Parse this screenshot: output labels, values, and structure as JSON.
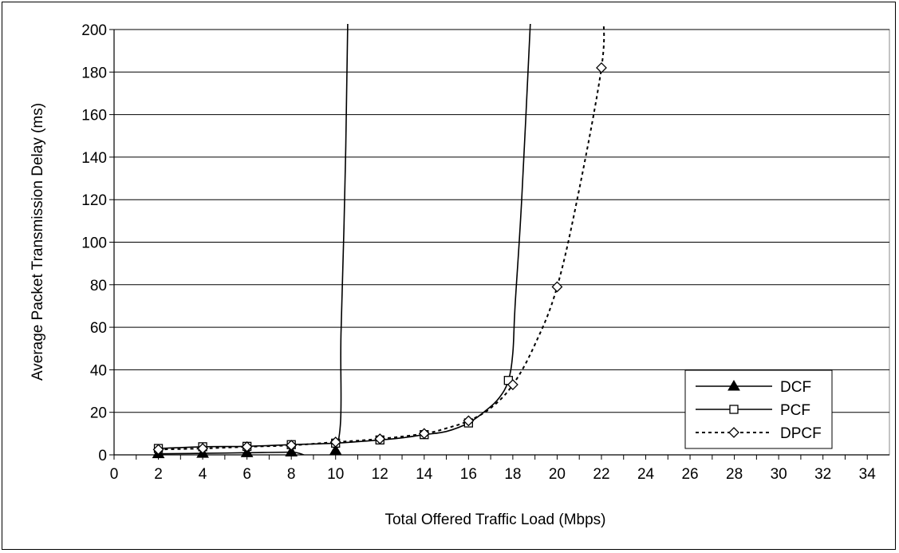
{
  "chart_data": {
    "type": "line",
    "title": "",
    "xlabel": "Total Offered Traffic Load (Mbps)",
    "ylabel": "Average Packet Transmission Delay (ms)",
    "xlim": [
      0,
      35
    ],
    "ylim": [
      0,
      200
    ],
    "x_ticks": [
      0,
      2,
      4,
      6,
      8,
      10,
      12,
      14,
      16,
      18,
      20,
      22,
      24,
      26,
      28,
      30,
      32,
      34
    ],
    "y_ticks": [
      0,
      20,
      40,
      60,
      80,
      100,
      120,
      140,
      160,
      180,
      200
    ],
    "grid": "horizontal",
    "legend_position": "bottom-right",
    "series": [
      {
        "name": "DCF",
        "marker": "filled-triangle",
        "line_style": "solid",
        "color": "#000000",
        "markers": [
          [
            2,
            0.5
          ],
          [
            4,
            0.7
          ],
          [
            6,
            1.0
          ],
          [
            8,
            1.3
          ],
          [
            10,
            2.0
          ]
        ],
        "curve": [
          [
            2,
            0.5
          ],
          [
            4,
            0.7
          ],
          [
            6,
            1.0
          ],
          [
            8,
            1.3
          ],
          [
            10,
            2.0
          ],
          [
            10.25,
            60
          ],
          [
            10.45,
            140
          ],
          [
            10.55,
            205
          ]
        ]
      },
      {
        "name": "PCF",
        "marker": "open-square",
        "line_style": "solid",
        "color": "#000000",
        "markers": [
          [
            2,
            3.0
          ],
          [
            4,
            3.8
          ],
          [
            6,
            4.0
          ],
          [
            8,
            4.8
          ],
          [
            10,
            5.5
          ],
          [
            12,
            7.0
          ],
          [
            14,
            9.5
          ],
          [
            16,
            15.0
          ],
          [
            17.8,
            35.0
          ]
        ],
        "curve": [
          [
            2,
            3.0
          ],
          [
            4,
            3.8
          ],
          [
            6,
            4.0
          ],
          [
            8,
            4.8
          ],
          [
            10,
            5.5
          ],
          [
            12,
            7.0
          ],
          [
            13,
            8.0
          ],
          [
            14,
            9.5
          ],
          [
            15,
            11.0
          ],
          [
            16,
            15.0
          ],
          [
            16.8,
            21.0
          ],
          [
            17.4,
            27.0
          ],
          [
            17.8,
            35.0
          ],
          [
            18.0,
            48.0
          ],
          [
            18.1,
            70.0
          ],
          [
            18.4,
            120.0
          ],
          [
            18.8,
            205.0
          ]
        ]
      },
      {
        "name": "DPCF",
        "marker": "open-diamond",
        "line_style": "dotted",
        "color": "#000000",
        "markers": [
          [
            2,
            2.5
          ],
          [
            4,
            3.0
          ],
          [
            6,
            3.8
          ],
          [
            8,
            4.5
          ],
          [
            10,
            6.0
          ],
          [
            12,
            7.5
          ],
          [
            14,
            10.0
          ],
          [
            16,
            16.0
          ],
          [
            18,
            33.0
          ],
          [
            20,
            79.0
          ],
          [
            22,
            182.0
          ]
        ],
        "curve": [
          [
            2,
            2.5
          ],
          [
            4,
            3.0
          ],
          [
            6,
            3.8
          ],
          [
            8,
            4.5
          ],
          [
            10,
            6.0
          ],
          [
            12,
            7.5
          ],
          [
            14,
            10.0
          ],
          [
            15,
            12.5
          ],
          [
            16,
            16.0
          ],
          [
            17,
            22.0
          ],
          [
            18,
            33.0
          ],
          [
            19,
            52.0
          ],
          [
            20,
            79.0
          ],
          [
            21,
            125.0
          ],
          [
            22,
            182.0
          ],
          [
            22.1,
            205.0
          ]
        ]
      }
    ]
  }
}
